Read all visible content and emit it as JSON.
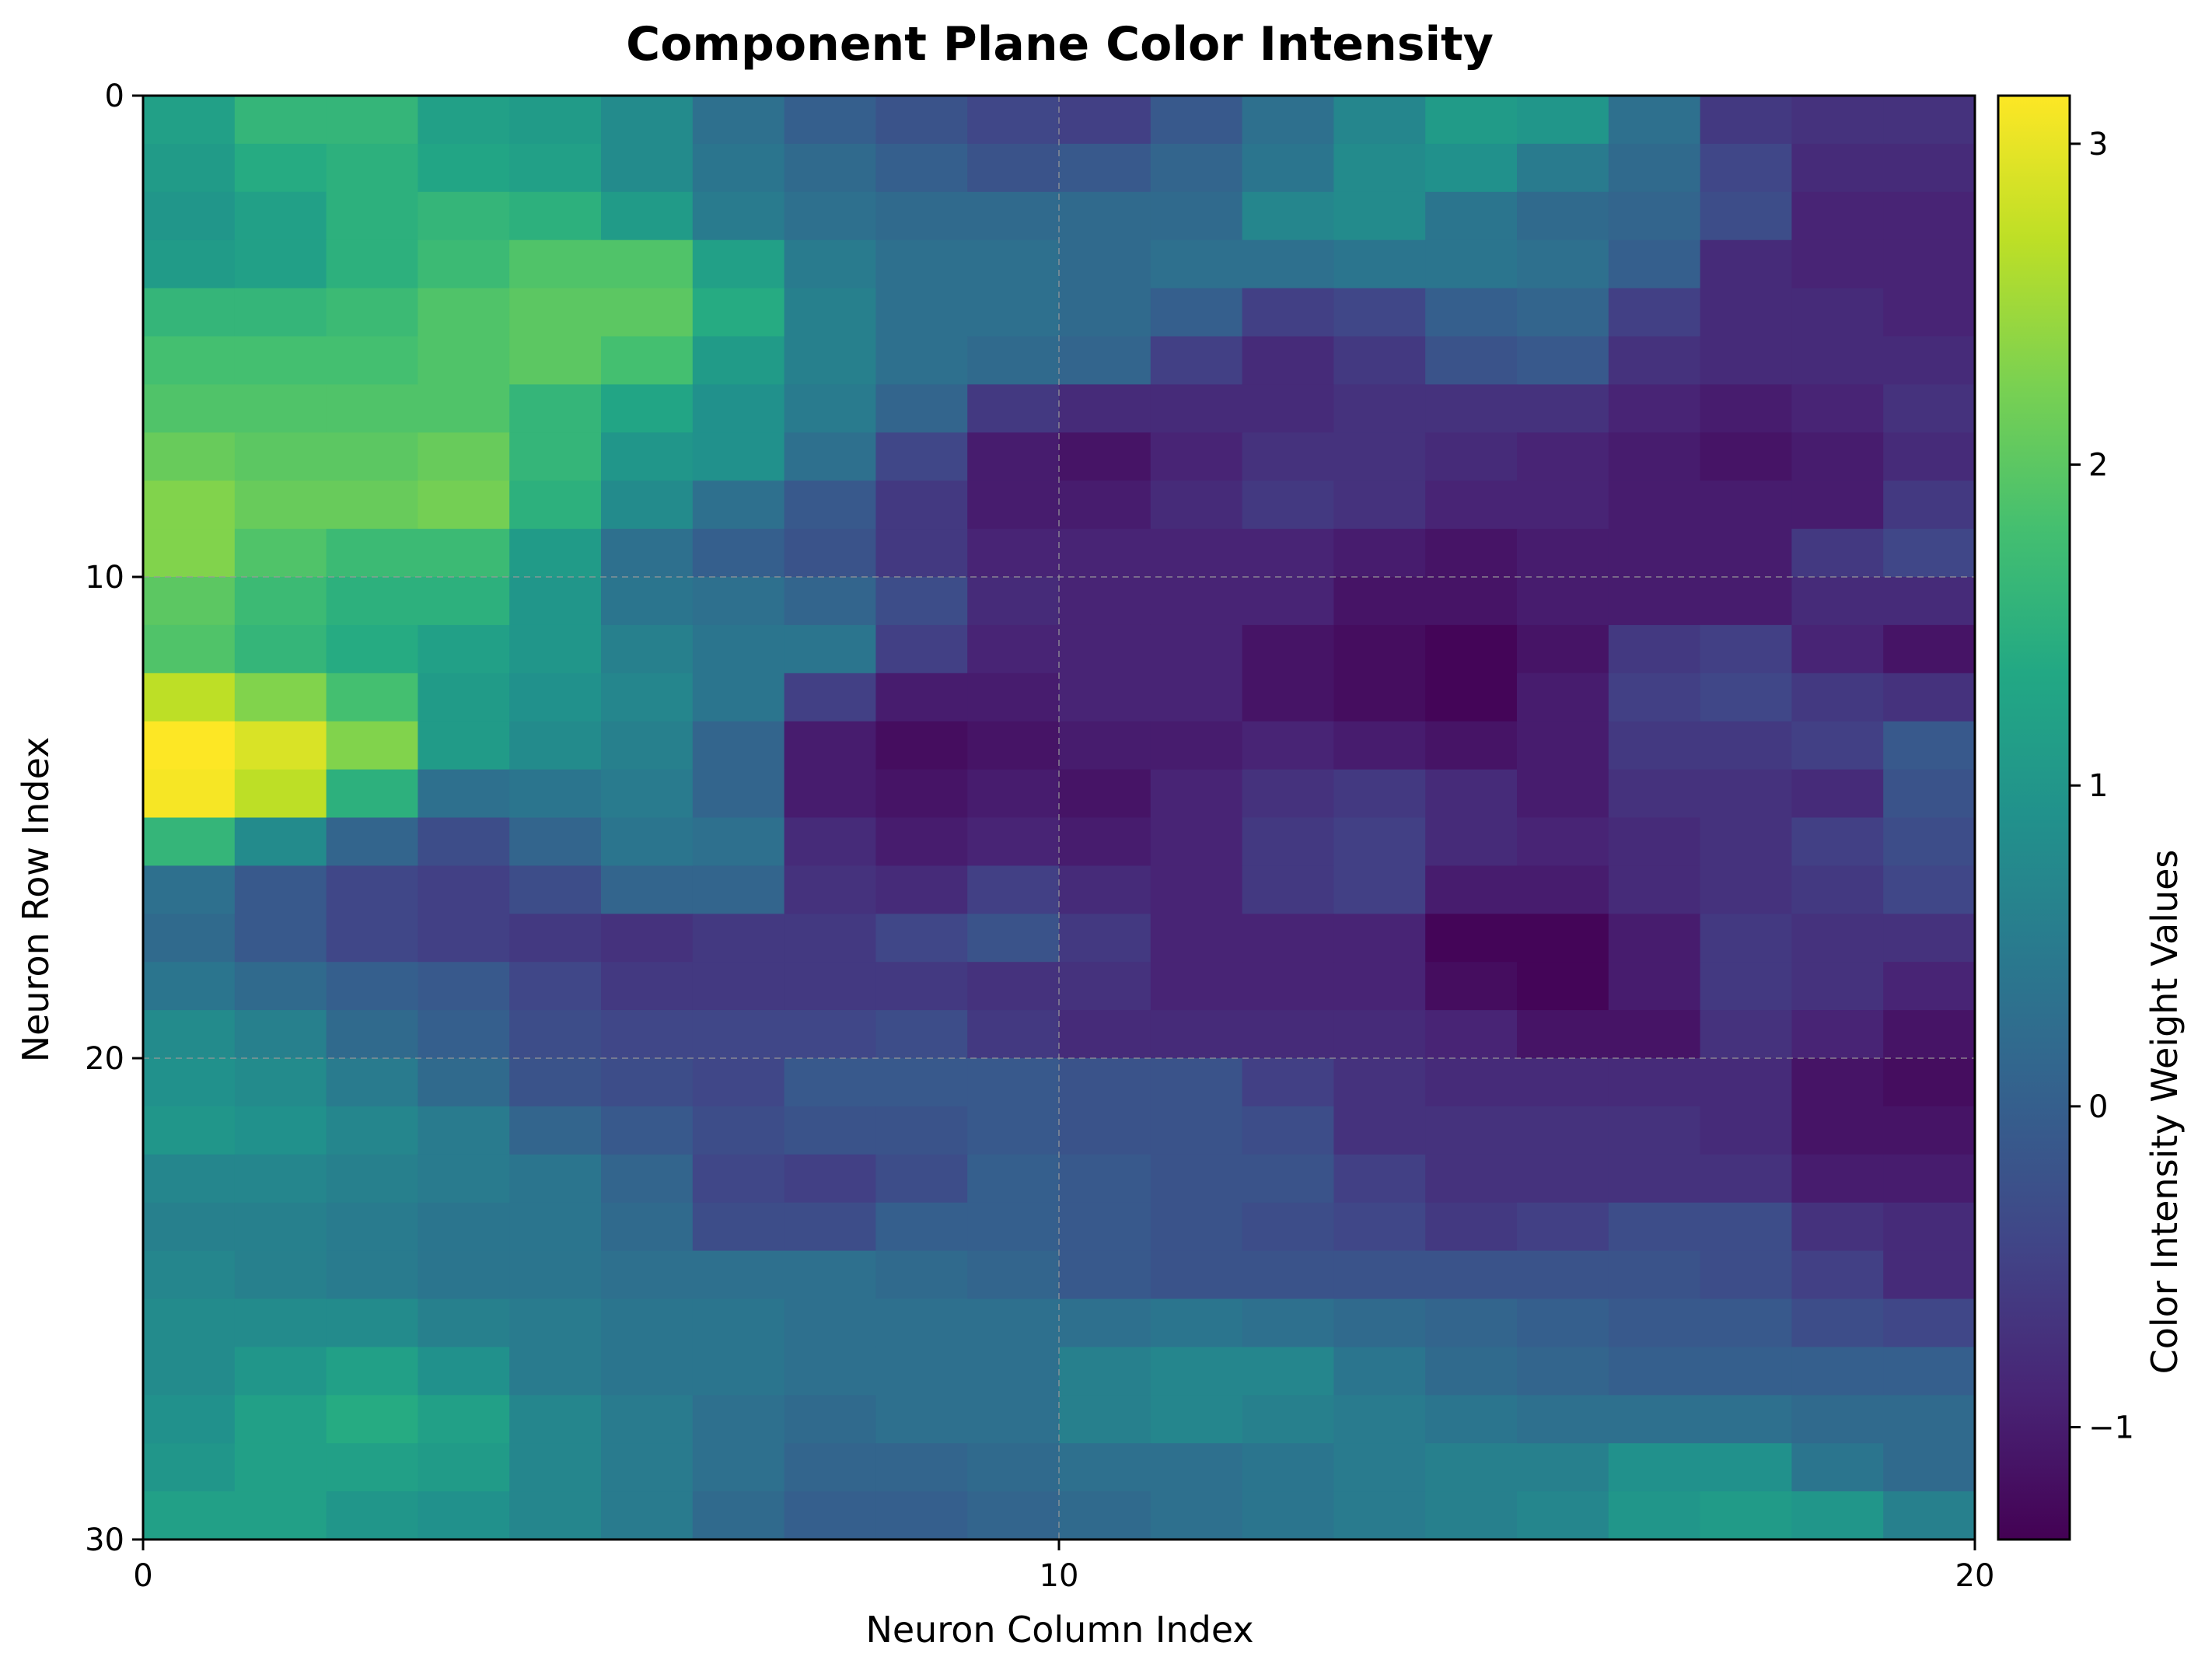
{
  "chart_data": {
    "type": "heatmap",
    "title": "Component Plane Color Intensity",
    "xlabel": "Neuron Column Index",
    "ylabel": "Neuron Row Index",
    "colorbar_label": "Color Intensity Weight Values",
    "colormap": "viridis",
    "xlim": [
      0,
      20
    ],
    "ylim": [
      30,
      0
    ],
    "x_ticks": [
      0,
      10,
      20
    ],
    "y_ticks": [
      0,
      10,
      20,
      30
    ],
    "colorbar_range": [
      -1.35,
      3.15
    ],
    "colorbar_ticks": [
      -1,
      0,
      1,
      2,
      3
    ],
    "grid": true,
    "n_rows": 30,
    "n_cols": 20,
    "values": [
      [
        1.2,
        1.6,
        1.6,
        1.2,
        1.1,
        0.8,
        0.3,
        0.0,
        -0.2,
        -0.4,
        -0.5,
        -0.1,
        0.3,
        0.7,
        1.1,
        1.0,
        0.3,
        -0.6,
        -0.7,
        -0.7
      ],
      [
        1.1,
        1.4,
        1.5,
        1.3,
        1.2,
        0.8,
        0.4,
        0.2,
        0.0,
        -0.2,
        -0.1,
        0.1,
        0.4,
        0.8,
        0.9,
        0.5,
        0.2,
        -0.4,
        -0.8,
        -0.8
      ],
      [
        1.0,
        1.2,
        1.5,
        1.6,
        1.5,
        1.1,
        0.5,
        0.3,
        0.2,
        0.2,
        0.2,
        0.2,
        0.7,
        0.8,
        0.4,
        0.2,
        0.1,
        -0.3,
        -0.9,
        -0.9
      ],
      [
        1.1,
        1.2,
        1.5,
        1.7,
        1.9,
        1.9,
        1.2,
        0.5,
        0.3,
        0.3,
        0.2,
        0.3,
        0.3,
        0.4,
        0.4,
        0.3,
        0.0,
        -0.8,
        -0.9,
        -0.9
      ],
      [
        1.6,
        1.6,
        1.7,
        1.9,
        2.0,
        2.0,
        1.4,
        0.6,
        0.3,
        0.3,
        0.2,
        0.0,
        -0.5,
        -0.4,
        0.0,
        0.1,
        -0.5,
        -0.8,
        -0.8,
        -0.9
      ],
      [
        1.8,
        1.8,
        1.8,
        1.9,
        2.0,
        1.8,
        1.1,
        0.6,
        0.3,
        0.2,
        0.1,
        -0.5,
        -0.8,
        -0.6,
        -0.2,
        -0.1,
        -0.7,
        -0.8,
        -0.8,
        -0.8
      ],
      [
        1.9,
        1.9,
        1.9,
        1.9,
        1.6,
        1.3,
        0.9,
        0.5,
        0.1,
        -0.6,
        -0.8,
        -0.8,
        -0.8,
        -0.7,
        -0.7,
        -0.7,
        -0.9,
        -1.0,
        -0.9,
        -0.7
      ],
      [
        2.1,
        2.0,
        2.0,
        2.1,
        1.6,
        1.0,
        0.9,
        0.3,
        -0.4,
        -1.0,
        -1.1,
        -0.9,
        -0.7,
        -0.7,
        -0.8,
        -0.9,
        -1.0,
        -1.1,
        -1.0,
        -0.8
      ],
      [
        2.3,
        2.1,
        2.1,
        2.2,
        1.5,
        0.8,
        0.3,
        -0.1,
        -0.6,
        -1.0,
        -1.0,
        -0.8,
        -0.6,
        -0.7,
        -0.9,
        -0.9,
        -1.0,
        -1.0,
        -1.0,
        -0.6
      ],
      [
        2.3,
        1.9,
        1.7,
        1.7,
        1.1,
        0.3,
        0.0,
        -0.2,
        -0.6,
        -0.9,
        -0.9,
        -0.9,
        -0.9,
        -1.0,
        -1.1,
        -1.0,
        -1.0,
        -1.0,
        -0.6,
        -0.4
      ],
      [
        2.0,
        1.7,
        1.5,
        1.5,
        1.0,
        0.4,
        0.3,
        0.1,
        -0.3,
        -0.8,
        -0.9,
        -0.9,
        -0.9,
        -1.1,
        -1.1,
        -1.0,
        -1.0,
        -1.0,
        -0.8,
        -0.8
      ],
      [
        1.9,
        1.6,
        1.4,
        1.2,
        1.0,
        0.6,
        0.4,
        0.4,
        -0.5,
        -0.9,
        -0.9,
        -0.9,
        -1.1,
        -1.2,
        -1.3,
        -1.1,
        -0.6,
        -0.5,
        -0.9,
        -1.1
      ],
      [
        2.7,
        2.3,
        1.8,
        1.1,
        0.9,
        0.7,
        0.4,
        -0.5,
        -1.0,
        -1.0,
        -0.9,
        -0.9,
        -1.1,
        -1.2,
        -1.3,
        -1.0,
        -0.5,
        -0.4,
        -0.6,
        -0.7
      ],
      [
        3.2,
        2.9,
        2.3,
        1.1,
        0.8,
        0.6,
        0.1,
        -1.0,
        -1.2,
        -1.1,
        -1.0,
        -1.0,
        -0.9,
        -1.0,
        -1.1,
        -1.0,
        -0.6,
        -0.6,
        -0.5,
        -0.1
      ],
      [
        3.1,
        2.7,
        1.5,
        0.3,
        0.4,
        0.5,
        0.1,
        -1.0,
        -1.1,
        -1.0,
        -1.1,
        -0.9,
        -0.7,
        -0.6,
        -0.8,
        -1.0,
        -0.7,
        -0.7,
        -0.8,
        -0.2
      ],
      [
        1.6,
        0.8,
        0.1,
        -0.3,
        0.1,
        0.4,
        0.3,
        -0.8,
        -1.0,
        -0.9,
        -1.0,
        -0.9,
        -0.6,
        -0.5,
        -0.8,
        -0.9,
        -0.8,
        -0.7,
        -0.5,
        -0.3
      ],
      [
        0.3,
        -0.1,
        -0.4,
        -0.5,
        -0.3,
        0.1,
        0.1,
        -0.7,
        -0.8,
        -0.5,
        -0.8,
        -0.9,
        -0.6,
        -0.5,
        -1.0,
        -1.0,
        -0.8,
        -0.7,
        -0.6,
        -0.4
      ],
      [
        0.2,
        -0.1,
        -0.4,
        -0.5,
        -0.6,
        -0.7,
        -0.6,
        -0.6,
        -0.4,
        -0.2,
        -0.6,
        -0.9,
        -0.9,
        -0.9,
        -1.3,
        -1.3,
        -1.0,
        -0.6,
        -0.7,
        -0.7
      ],
      [
        0.4,
        0.2,
        0.0,
        -0.1,
        -0.4,
        -0.6,
        -0.6,
        -0.6,
        -0.6,
        -0.7,
        -0.7,
        -0.9,
        -0.9,
        -0.9,
        -1.2,
        -1.3,
        -1.0,
        -0.6,
        -0.7,
        -0.9
      ],
      [
        0.8,
        0.6,
        0.2,
        0.0,
        -0.3,
        -0.4,
        -0.4,
        -0.4,
        -0.3,
        -0.6,
        -0.8,
        -0.8,
        -0.8,
        -0.8,
        -0.9,
        -1.1,
        -1.1,
        -0.7,
        -0.9,
        -1.1
      ],
      [
        0.9,
        0.8,
        0.5,
        0.2,
        -0.2,
        -0.3,
        -0.4,
        -0.1,
        -0.1,
        -0.1,
        -0.2,
        -0.2,
        -0.5,
        -0.7,
        -0.8,
        -0.8,
        -0.8,
        -0.8,
        -1.1,
        -1.2
      ],
      [
        1.0,
        0.9,
        0.7,
        0.5,
        0.1,
        -0.1,
        -0.3,
        -0.2,
        -0.2,
        -0.1,
        -0.2,
        -0.2,
        -0.3,
        -0.7,
        -0.7,
        -0.7,
        -0.7,
        -0.8,
        -1.1,
        -1.1
      ],
      [
        0.7,
        0.7,
        0.6,
        0.5,
        0.4,
        0.1,
        -0.4,
        -0.5,
        -0.3,
        0.0,
        -0.1,
        -0.2,
        -0.2,
        -0.5,
        -0.7,
        -0.7,
        -0.7,
        -0.7,
        -1.0,
        -1.0
      ],
      [
        0.6,
        0.6,
        0.5,
        0.4,
        0.4,
        0.2,
        -0.3,
        -0.3,
        0.0,
        0.0,
        -0.1,
        -0.2,
        -0.3,
        -0.4,
        -0.6,
        -0.5,
        -0.3,
        -0.3,
        -0.7,
        -0.8
      ],
      [
        0.7,
        0.6,
        0.5,
        0.4,
        0.4,
        0.3,
        0.3,
        0.3,
        0.2,
        0.1,
        -0.1,
        -0.2,
        -0.2,
        -0.2,
        -0.2,
        -0.2,
        -0.2,
        -0.3,
        -0.5,
        -0.8
      ],
      [
        0.8,
        0.8,
        0.8,
        0.6,
        0.5,
        0.4,
        0.4,
        0.3,
        0.3,
        0.3,
        0.3,
        0.4,
        0.3,
        0.2,
        0.1,
        0.0,
        -0.1,
        -0.1,
        -0.3,
        -0.4
      ],
      [
        0.8,
        1.0,
        1.2,
        0.9,
        0.5,
        0.4,
        0.4,
        0.3,
        0.3,
        0.3,
        0.6,
        0.7,
        0.7,
        0.4,
        0.2,
        0.1,
        0.0,
        0.0,
        0.0,
        0.0
      ],
      [
        0.9,
        1.2,
        1.4,
        1.2,
        0.7,
        0.5,
        0.3,
        0.2,
        0.3,
        0.3,
        0.6,
        0.7,
        0.6,
        0.5,
        0.4,
        0.3,
        0.3,
        0.3,
        0.2,
        0.2
      ],
      [
        1.0,
        1.2,
        1.2,
        1.1,
        0.7,
        0.5,
        0.3,
        0.1,
        0.1,
        0.2,
        0.3,
        0.3,
        0.4,
        0.5,
        0.6,
        0.6,
        0.9,
        0.9,
        0.4,
        0.2
      ],
      [
        1.2,
        1.2,
        1.0,
        0.9,
        0.7,
        0.5,
        0.2,
        0.0,
        0.0,
        0.1,
        0.2,
        0.3,
        0.4,
        0.5,
        0.6,
        0.7,
        1.0,
        1.1,
        1.0,
        0.6
      ]
    ]
  }
}
